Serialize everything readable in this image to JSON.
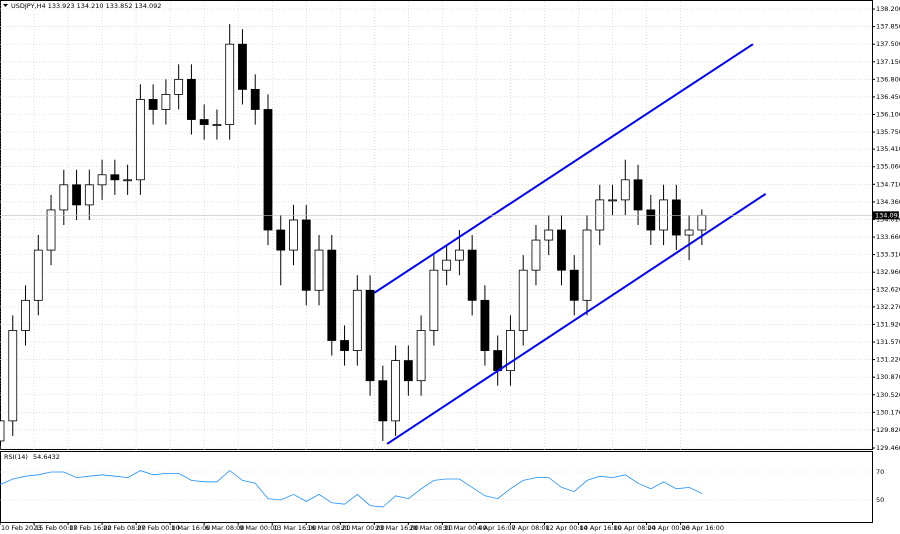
{
  "chart_data": [
    {
      "type": "candlestick",
      "title": "USDJPY,H4 133.923 134.210 133.852 134.092",
      "x": [
        0,
        6,
        12,
        18,
        24,
        30,
        36,
        42,
        48,
        54,
        60,
        66,
        72,
        78,
        84,
        90,
        96,
        102,
        108,
        114,
        120,
        126,
        132,
        138,
        144,
        150,
        156,
        162,
        168,
        174,
        180,
        186,
        192,
        198,
        204,
        210,
        216,
        222,
        228,
        234,
        240,
        246,
        252,
        258,
        264,
        270,
        276,
        282,
        288,
        294,
        300,
        306,
        312,
        318,
        324,
        330
      ],
      "open": [
        129.6,
        130.0,
        131.8,
        132.4,
        133.4,
        134.2,
        134.7,
        134.3,
        134.7,
        134.9,
        134.8,
        134.8,
        136.4,
        136.2,
        136.5,
        136.8,
        136.0,
        135.9,
        135.9,
        137.5,
        136.6,
        136.2,
        133.8,
        133.4,
        134.0,
        132.6,
        133.4,
        131.6,
        131.4,
        132.6,
        130.8,
        130.0,
        131.2,
        130.8,
        131.8,
        133.0,
        133.2,
        133.4,
        132.4,
        131.4,
        131.0,
        131.8,
        133.0,
        133.6,
        133.8,
        133.0,
        132.4,
        133.8,
        134.4,
        134.4,
        134.8,
        134.2,
        133.8,
        134.4,
        133.7,
        133.8
      ],
      "high": [
        130.3,
        132.1,
        132.7,
        133.7,
        134.5,
        135.0,
        135.0,
        135.0,
        135.2,
        135.2,
        135.1,
        136.7,
        136.7,
        136.8,
        137.1,
        137.1,
        136.3,
        136.2,
        137.9,
        137.8,
        136.9,
        136.5,
        134.1,
        134.3,
        134.3,
        133.7,
        133.7,
        131.9,
        132.9,
        132.9,
        131.1,
        131.5,
        131.5,
        132.1,
        133.3,
        133.5,
        133.8,
        133.7,
        132.7,
        131.7,
        132.1,
        133.3,
        133.9,
        134.1,
        134.1,
        133.3,
        134.1,
        134.7,
        134.7,
        135.2,
        135.1,
        134.5,
        134.7,
        134.7,
        134.1,
        134.21
      ],
      "low": [
        129.5,
        129.7,
        131.5,
        132.1,
        133.1,
        133.9,
        134.0,
        134.0,
        134.4,
        134.5,
        134.5,
        134.5,
        135.9,
        135.9,
        136.2,
        135.7,
        135.6,
        135.6,
        135.6,
        136.3,
        135.9,
        133.5,
        132.7,
        133.1,
        132.3,
        132.3,
        131.3,
        131.1,
        131.1,
        130.5,
        129.6,
        129.7,
        130.5,
        130.5,
        131.5,
        132.7,
        132.9,
        132.1,
        131.1,
        130.7,
        130.7,
        131.5,
        132.7,
        133.3,
        132.7,
        132.1,
        132.1,
        133.5,
        134.1,
        134.1,
        133.9,
        133.5,
        133.5,
        133.4,
        133.2,
        133.5
      ],
      "close": [
        130.0,
        131.8,
        132.4,
        133.4,
        134.2,
        134.7,
        134.3,
        134.7,
        134.9,
        134.8,
        134.8,
        136.4,
        136.2,
        136.5,
        136.8,
        136.0,
        135.9,
        135.9,
        137.5,
        136.6,
        136.2,
        133.8,
        133.4,
        134.0,
        132.6,
        133.4,
        131.6,
        131.4,
        132.6,
        130.8,
        130.0,
        131.2,
        130.8,
        131.8,
        133.0,
        133.2,
        133.4,
        132.4,
        131.4,
        131.0,
        131.8,
        133.0,
        133.6,
        133.8,
        133.0,
        132.4,
        133.8,
        134.4,
        134.4,
        134.8,
        134.2,
        133.8,
        134.4,
        133.7,
        133.8,
        134.092
      ],
      "current_price": 134.092,
      "xlim": [
        0,
        410
      ],
      "ylim": [
        129.42,
        138.34
      ],
      "xticks": [
        {
          "value": 0,
          "label": "10 Feb 2023"
        },
        {
          "value": 16,
          "label": "15 Feb 00:00"
        },
        {
          "value": 32,
          "label": "17 Feb 16:00"
        },
        {
          "value": 48,
          "label": "22 Feb 08:00"
        },
        {
          "value": 64,
          "label": "27 Feb 00:00"
        },
        {
          "value": 80,
          "label": "1 Mar 16:00"
        },
        {
          "value": 96,
          "label": "6 Mar 08:00"
        },
        {
          "value": 112,
          "label": "9 Mar 00:00"
        },
        {
          "value": 128,
          "label": "13 Mar 16:00"
        },
        {
          "value": 144,
          "label": "16 Mar 08:00"
        },
        {
          "value": 160,
          "label": "21 Mar 00:00"
        },
        {
          "value": 176,
          "label": "23 Mar 16:00"
        },
        {
          "value": 192,
          "label": "28 Mar 08:00"
        },
        {
          "value": 208,
          "label": "31 Mar 00:00"
        },
        {
          "value": 224,
          "label": "4 Apr 16:00"
        },
        {
          "value": 240,
          "label": "7 Apr 08:00"
        },
        {
          "value": 256,
          "label": "12 Apr 00:00"
        },
        {
          "value": 272,
          "label": "14 Apr 16:00"
        },
        {
          "value": 288,
          "label": "19 Apr 08:00"
        },
        {
          "value": 304,
          "label": "24 Apr 00:00"
        },
        {
          "value": 320,
          "label": "26 Apr 16:00"
        }
      ],
      "yticks": [
        {
          "value": 138.2,
          "label": "138.200"
        },
        {
          "value": 137.85,
          "label": "137.850"
        },
        {
          "value": 137.5,
          "label": "137.500"
        },
        {
          "value": 137.15,
          "label": "137.150"
        },
        {
          "value": 136.8,
          "label": "136.800"
        },
        {
          "value": 136.45,
          "label": "136.450"
        },
        {
          "value": 136.1,
          "label": "136.100"
        },
        {
          "value": 135.75,
          "label": "135.750"
        },
        {
          "value": 135.41,
          "label": "135.410"
        },
        {
          "value": 135.06,
          "label": "135.060"
        },
        {
          "value": 134.71,
          "label": "134.710"
        },
        {
          "value": 134.36,
          "label": "134.360"
        },
        {
          "value": 134.01,
          "label": "134.010"
        },
        {
          "value": 133.66,
          "label": "133.660"
        },
        {
          "value": 133.31,
          "label": "133.310"
        },
        {
          "value": 132.96,
          "label": "132.960"
        },
        {
          "value": 132.62,
          "label": "132.620"
        },
        {
          "value": 132.27,
          "label": "132.270"
        },
        {
          "value": 131.92,
          "label": "131.920"
        },
        {
          "value": 131.57,
          "label": "131.570"
        },
        {
          "value": 131.22,
          "label": "131.220"
        },
        {
          "value": 130.87,
          "label": "130.870"
        },
        {
          "value": 130.52,
          "label": "130.520"
        },
        {
          "value": 130.17,
          "label": "130.170"
        },
        {
          "value": 129.82,
          "label": "129.820"
        },
        {
          "value": 129.46,
          "label": "129.460"
        }
      ],
      "grid": true,
      "up_color": "#ffffff",
      "down_color": "#000000",
      "trendlines": [
        {
          "x": [
            176,
            354
          ],
          "y": [
            132.55,
            137.5
          ],
          "color": "#0000ff"
        },
        {
          "x": [
            182,
            360
          ],
          "y": [
            129.54,
            134.52
          ],
          "color": "#0000ff"
        }
      ]
    },
    {
      "type": "line",
      "title": "RSI(14)",
      "last_value": 54.6432,
      "color": "#1e90ff",
      "values": [
        61,
        65,
        67,
        68,
        70,
        70,
        66,
        67,
        68,
        67,
        66,
        71,
        68,
        69,
        69,
        64,
        63,
        63,
        71,
        64,
        62,
        51,
        50,
        54,
        49,
        54,
        48,
        47,
        54,
        46,
        45,
        53,
        51,
        58,
        64,
        65,
        65,
        59,
        53,
        51,
        58,
        64,
        66,
        66,
        59,
        56,
        64,
        67,
        66,
        68,
        62,
        58,
        63,
        58,
        59,
        54.6432
      ],
      "ylim": [
        35,
        85
      ],
      "yticks": [
        70,
        50
      ]
    }
  ]
}
